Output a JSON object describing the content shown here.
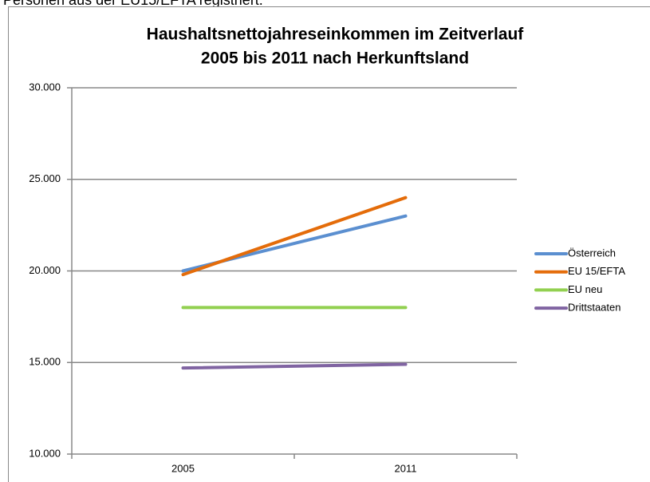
{
  "caption": "Personen aus der EU15/EFTA registriert.",
  "chart_data": {
    "type": "line",
    "title": "Haushaltsnettojahreseinkommen im Zeitverlauf",
    "subtitle": "2005 bis 2011 nach Herkunftsland",
    "categories": [
      "2005",
      "2011"
    ],
    "series": [
      {
        "name": "Österreich",
        "color": "#5b8fd0",
        "values": [
          20000,
          23000
        ]
      },
      {
        "name": "EU 15/EFTA",
        "color": "#e46c0a",
        "values": [
          19800,
          24000
        ]
      },
      {
        "name": "EU neu",
        "color": "#92d050",
        "values": [
          18000,
          18000
        ]
      },
      {
        "name": "Drittstaaten",
        "color": "#8064a2",
        "values": [
          14700,
          14900
        ]
      }
    ],
    "ylim": [
      10000,
      30000
    ],
    "yticks": [
      {
        "value": 10000,
        "label": "10.000"
      },
      {
        "value": 15000,
        "label": "15.000"
      },
      {
        "value": 20000,
        "label": "20.000"
      },
      {
        "value": 25000,
        "label": "25.000"
      },
      {
        "value": 30000,
        "label": "30.000"
      }
    ],
    "grid": true,
    "legend": "right"
  }
}
